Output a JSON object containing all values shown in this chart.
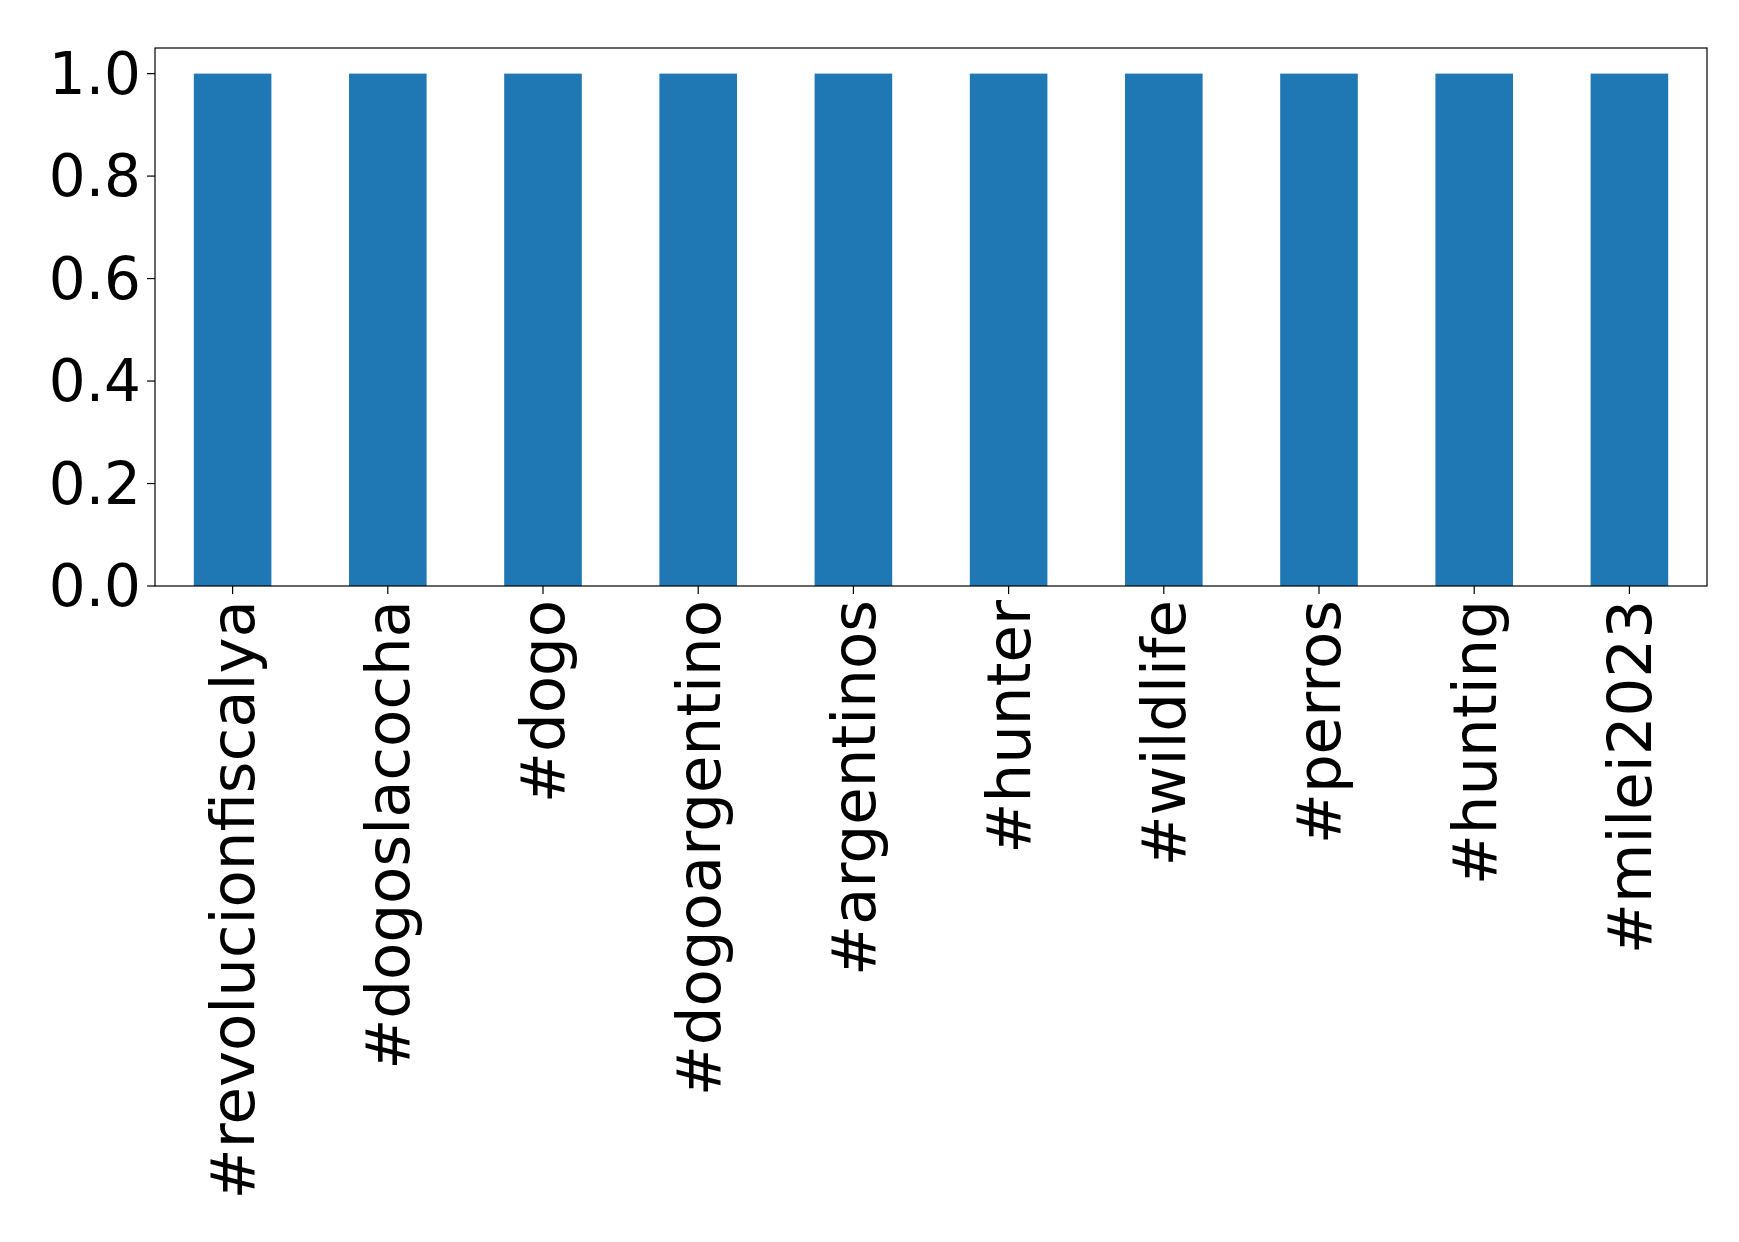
{
  "chart_data": {
    "type": "bar",
    "categories": [
      "#revolucionfiscalya",
      "#dogoslacocha",
      "#dogo",
      "#dogoargentino",
      "#argentinos",
      "#hunter",
      "#wildlife",
      "#perros",
      "#hunting",
      "#milei2023"
    ],
    "values": [
      1,
      1,
      1,
      1,
      1,
      1,
      1,
      1,
      1,
      1
    ],
    "color": "#1f77b4",
    "ylim": [
      0,
      1.05
    ],
    "yticks": [
      {
        "value": 0,
        "label": "0.0"
      },
      {
        "value": 0.2,
        "label": "0.2"
      },
      {
        "value": 0.4,
        "label": "0.4"
      },
      {
        "value": 0.6,
        "label": "0.6"
      },
      {
        "value": 0.8,
        "label": "0.8"
      },
      {
        "value": 1,
        "label": "1.0"
      }
    ]
  }
}
